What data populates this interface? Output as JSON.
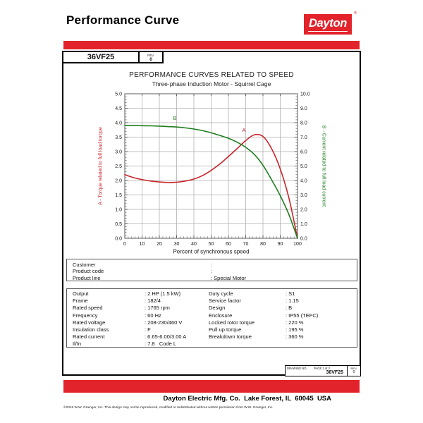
{
  "page": {
    "title": "Performance Curve",
    "logo_text": "Dayton",
    "logo_reg": "®",
    "model": "36VF25",
    "rev_label": "REV.",
    "rev_value": "0"
  },
  "chart_data": {
    "type": "line",
    "title": "PERFORMANCE CURVES RELATED TO SPEED",
    "subtitle": "Three-phase Induction Motor - Squirrel Cage",
    "xlabel": "Percent of synchronous speed",
    "grid": true,
    "x_axis": {
      "min": 0,
      "max": 100,
      "major": 10,
      "minor": 2
    },
    "left_axis": {
      "label": "A - Torque related to full load torque",
      "color": "#c8252b",
      "min": 0,
      "max": 5,
      "major": 0.5,
      "minor": 0.1
    },
    "right_axis": {
      "label": "B - Current related to full load current",
      "color": "#1e7d1e",
      "min": 0,
      "max": 10,
      "major": 1,
      "minor": 0.2
    },
    "x": [
      0,
      5,
      10,
      15,
      20,
      25,
      30,
      35,
      40,
      45,
      50,
      55,
      60,
      65,
      70,
      75,
      80,
      85,
      90,
      95,
      100
    ],
    "series": [
      {
        "name": "A",
        "axis": "left",
        "color": "#c8252b",
        "values": [
          2.2,
          2.1,
          2.03,
          1.98,
          1.95,
          1.93,
          1.94,
          1.98,
          2.05,
          2.17,
          2.35,
          2.57,
          2.83,
          3.1,
          3.38,
          3.58,
          3.52,
          3.1,
          2.4,
          1.4,
          0
        ],
        "label_at": {
          "x": 69,
          "y": 3.68
        }
      },
      {
        "name": "B",
        "axis": "right",
        "color": "#1e7d1e",
        "values": [
          7.8,
          7.8,
          7.79,
          7.78,
          7.76,
          7.73,
          7.7,
          7.64,
          7.56,
          7.45,
          7.3,
          7.12,
          6.92,
          6.65,
          6.3,
          5.8,
          5.05,
          4.05,
          2.95,
          1.65,
          0
        ],
        "label_at": {
          "x": 29,
          "y": 8.2
        }
      }
    ],
    "grid_color": "#ababab",
    "axis_color": "#5a5a5a"
  },
  "customer_section": {
    "rows": [
      {
        "label": "Customer",
        "value": ""
      },
      {
        "label": "Product code",
        "value": ""
      },
      {
        "label": "Product line",
        "value": "Special Motor"
      }
    ]
  },
  "specs_section": {
    "left": [
      {
        "label": "Output",
        "value": "2 HP (1.5 kW)"
      },
      {
        "label": "Frame",
        "value": "182/4"
      },
      {
        "label": "Rated speed",
        "value": "1765 rpm"
      },
      {
        "label": "Frequency",
        "value": "60 Hz"
      },
      {
        "label": "Rated voltage",
        "value": "208-230/460 V"
      },
      {
        "label": "Insulation class",
        "value": "F"
      },
      {
        "label": "Rated current",
        "value": "6.65-6.00/3.00 A"
      },
      {
        "label": "Il/In",
        "value": "7.8   Code L"
      }
    ],
    "right": [
      {
        "label": "Duty cycle",
        "value": "S1"
      },
      {
        "label": "Service factor",
        "value": "1.15"
      },
      {
        "label": "Design",
        "value": "B"
      },
      {
        "label": "Enclosure",
        "value": "IP55 (TEFC)"
      },
      {
        "label": "Locked rotor torque",
        "value": "220 %"
      },
      {
        "label": "Pull up torque",
        "value": "195 %"
      },
      {
        "label": "Breakdown torque",
        "value": "360 %"
      }
    ]
  },
  "drawing_box": {
    "drawing_no_label": "DRAWING NO.",
    "page_label": "PAGE 1 of 2",
    "drawing_no": "36VF25",
    "rev_label": "REV.",
    "rev_value": "0"
  },
  "footer": {
    "company": "Dayton Electric Mfg. Co.  Lake Forest, IL  60045  USA",
    "copyright": "©2015 W.W. Grainger, Inc.   This design may not be reproduced, modified or redistributed without written permission from W.W. Grainger, Inc."
  }
}
